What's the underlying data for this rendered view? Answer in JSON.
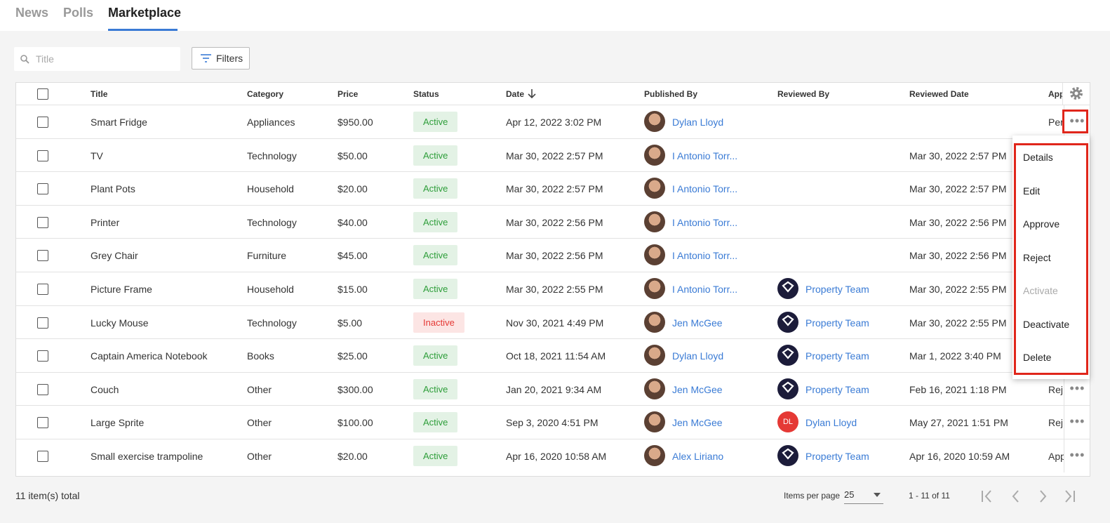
{
  "tabs": [
    "News",
    "Polls",
    "Marketplace"
  ],
  "active_tab": 2,
  "search_placeholder": "Title",
  "filters_button": "Filters",
  "table": {
    "headers": [
      "Title",
      "Category",
      "Price",
      "Status",
      "Date",
      "Published By",
      "Reviewed By",
      "Reviewed Date",
      "App"
    ],
    "rows": [
      {
        "title": "Smart Fridge",
        "category": "Appliances",
        "price": "$950.00",
        "status": "Active",
        "status_color": "#2e9e3a",
        "date": "Apr 12, 2022 3:02 PM",
        "published_by": "Dylan Lloyd",
        "approval": "Per"
      },
      {
        "title": "TV",
        "category": "Technology",
        "price": "$50.00",
        "status": "Active",
        "status_color": "#2e9e3a",
        "date": "Mar 30, 2022 2:57 PM",
        "published_by": "I Antonio Torr...",
        "reviewed_date": "Mar 30, 2022 2:57 PM"
      },
      {
        "title": "Plant Pots",
        "category": "Household",
        "price": "$20.00",
        "status": "Active",
        "status_color": "#2e9e3a",
        "date": "Mar 30, 2022 2:57 PM",
        "published_by": "I Antonio Torr...",
        "reviewed_date": "Mar 30, 2022 2:57 PM"
      },
      {
        "title": "Printer",
        "category": "Technology",
        "price": "$40.00",
        "status": "Active",
        "status_color": "#2e9e3a",
        "date": "Mar 30, 2022 2:56 PM",
        "published_by": "I Antonio Torr...",
        "reviewed_date": "Mar 30, 2022 2:56 PM"
      },
      {
        "title": "Grey Chair",
        "category": "Furniture",
        "price": "$45.00",
        "status": "Active",
        "status_color": "#2e9e3a",
        "date": "Mar 30, 2022 2:56 PM",
        "published_by": "I Antonio Torr...",
        "reviewed_date": "Mar 30, 2022 2:56 PM"
      },
      {
        "title": "Picture Frame",
        "category": "Household",
        "price": "$15.00",
        "status": "Active",
        "status_color": "#2e9e3a",
        "date": "Mar 30, 2022 2:55 PM",
        "published_by": "I Antonio Torr...",
        "reviewed_by": "Property Team",
        "reviewed_date": "Mar 30, 2022 2:55 PM"
      },
      {
        "title": "Lucky Mouse",
        "category": "Technology",
        "price": "$5.00",
        "status": "Inactive",
        "status_color": "#e53935",
        "date": "Nov 30, 2021 4:49 PM",
        "published_by": "Jen McGee",
        "reviewed_by": "Property Team",
        "reviewed_date": "Mar 30, 2022 2:55 PM"
      },
      {
        "title": "Captain America Notebook",
        "category": "Books",
        "price": "$25.00",
        "status": "Active",
        "status_color": "#2e9e3a",
        "date": "Oct 18, 2021 11:54 AM",
        "published_by": "Dylan Lloyd",
        "reviewed_by": "Property Team",
        "reviewed_date": "Mar 1, 2022 3:40 PM"
      },
      {
        "title": "Couch",
        "category": "Other",
        "price": "$300.00",
        "status": "Active",
        "status_color": "#2e9e3a",
        "date": "Jan 20, 2021 9:34 AM",
        "published_by": "Jen McGee",
        "reviewed_by": "Property Team",
        "reviewed_date": "Feb 16, 2021 1:18 PM",
        "approval": "Rej"
      },
      {
        "title": "Large Sprite",
        "category": "Other",
        "price": "$100.00",
        "status": "Active",
        "status_color": "#2e9e3a",
        "date": "Sep 3, 2020 4:51 PM",
        "published_by": "Jen McGee",
        "reviewed_by": "Dylan Lloyd",
        "reviewed_by_initials": "DL",
        "reviewed_date": "May 27, 2021 1:51 PM",
        "approval": "Rej"
      },
      {
        "title": "Small exercise trampoline",
        "category": "Other",
        "price": "$20.00",
        "status": "Active",
        "status_color": "#2e9e3a",
        "date": "Apr 16, 2020 10:58 AM",
        "published_by": "Alex Liriano",
        "reviewed_by": "Property Team",
        "reviewed_date": "Apr 16, 2020 10:59 AM",
        "approval": "App"
      }
    ]
  },
  "menu": [
    {
      "label": "Details"
    },
    {
      "label": "Edit"
    },
    {
      "label": "Approve"
    },
    {
      "label": "Reject"
    },
    {
      "label": "Activate",
      "disabled": true
    },
    {
      "label": "Deactivate"
    },
    {
      "label": "Delete"
    }
  ],
  "footer": {
    "total": "11 item(s) total",
    "per_page_label": "Items per page",
    "per_page": "25",
    "range": "1 - 11 of 11"
  }
}
